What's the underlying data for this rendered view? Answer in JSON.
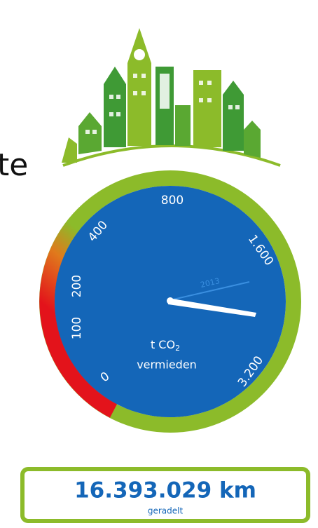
{
  "partial_text": "te",
  "gauge": {
    "ticks": [
      "0",
      "100",
      "200",
      "400",
      "800",
      "1.600",
      "3.200"
    ],
    "needle_label": "2013",
    "unit": "t CO",
    "unit_subscript": "2",
    "caption": "vermieden"
  },
  "counter": {
    "value": "16.393.029 km",
    "caption": "geradelt"
  }
}
